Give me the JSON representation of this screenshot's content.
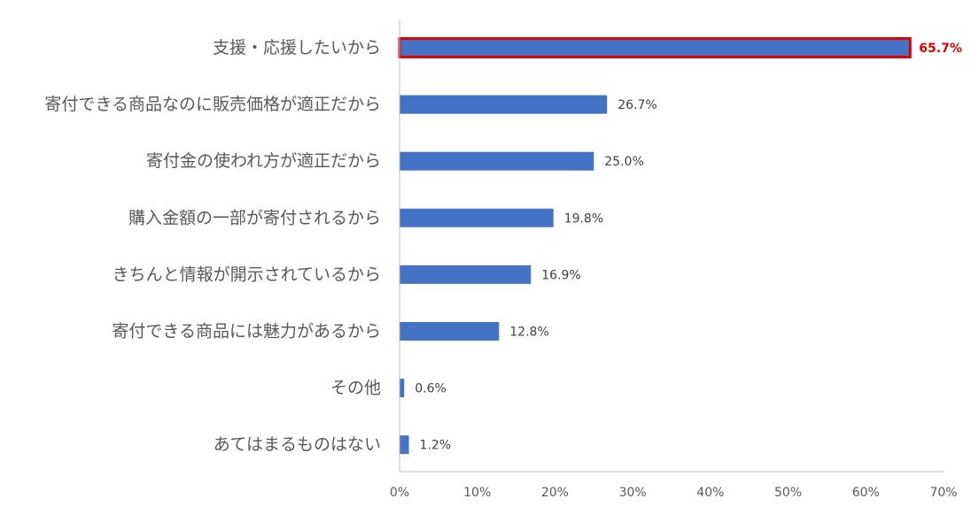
{
  "chart_data": {
    "type": "bar",
    "orientation": "horizontal",
    "categories": [
      "支援・応援したいから",
      "寄付できる商品なのに販売価格が適正だから",
      "寄付金の使われ方が適正だから",
      "購入金額の一部が寄付されるから",
      "きちんと情報が開示されているから",
      "寄付できる商品には魅力があるから",
      "その他",
      "あてはまるものはない"
    ],
    "values": [
      65.7,
      26.7,
      25.0,
      19.8,
      16.9,
      12.8,
      0.6,
      1.2
    ],
    "value_labels": [
      "65.7%",
      "26.7%",
      "25.0%",
      "19.8%",
      "16.9%",
      "12.8%",
      "0.6%",
      "1.2%"
    ],
    "highlight_index": 0,
    "xlim": [
      0,
      70
    ],
    "xticks": [
      "0%",
      "10%",
      "20%",
      "30%",
      "40%",
      "50%",
      "60%",
      "70%"
    ],
    "grid": false,
    "colors": {
      "bar": "#4472c4",
      "highlight_border": "#e00000",
      "highlight_label": "#e00000",
      "axis": "#bfbfbf"
    }
  }
}
